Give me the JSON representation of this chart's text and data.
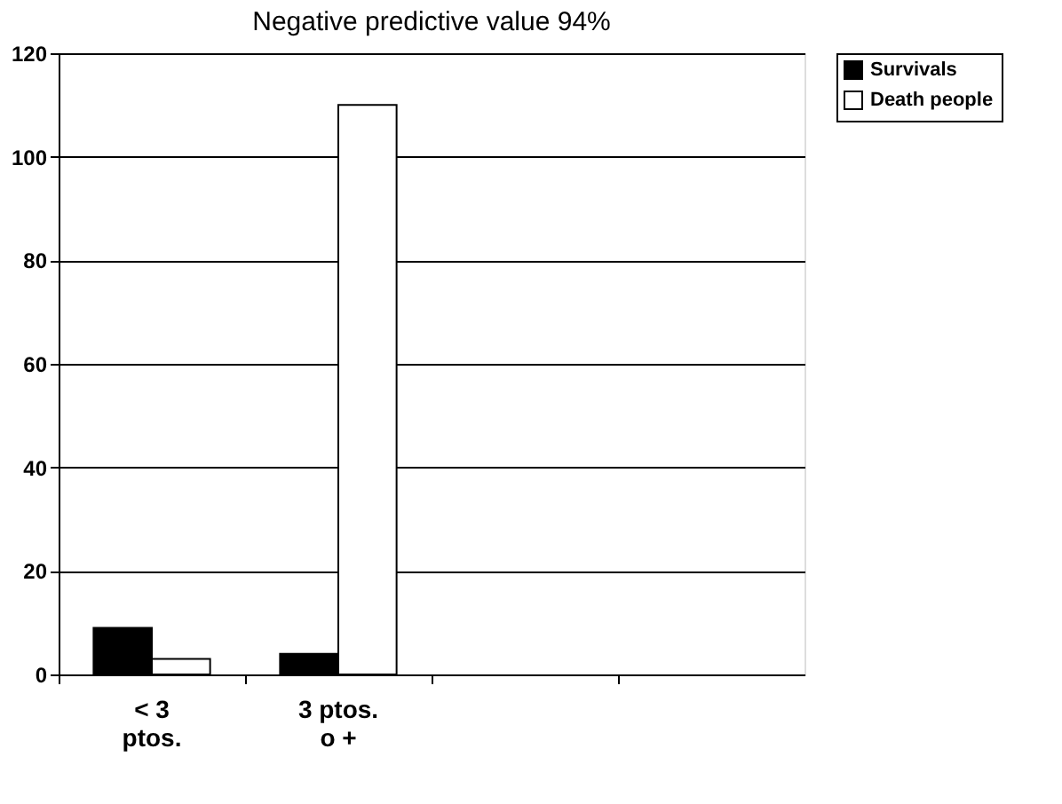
{
  "chart_data": {
    "type": "bar",
    "title": "Negative predictive value 94%",
    "categories": [
      [
        "< 3",
        "ptos."
      ],
      [
        "3 ptos.",
        "o +"
      ],
      null,
      null
    ],
    "series": [
      {
        "name": "Survivals",
        "color": "#000000",
        "values": [
          9,
          4,
          null,
          null
        ]
      },
      {
        "name": "Death people",
        "color": "#ffffff",
        "values": [
          3,
          110,
          null,
          null
        ]
      }
    ],
    "ylim": [
      0,
      120
    ],
    "yticks": [
      0,
      20,
      40,
      60,
      80,
      100,
      120
    ],
    "grid": "y",
    "legend": "right"
  }
}
